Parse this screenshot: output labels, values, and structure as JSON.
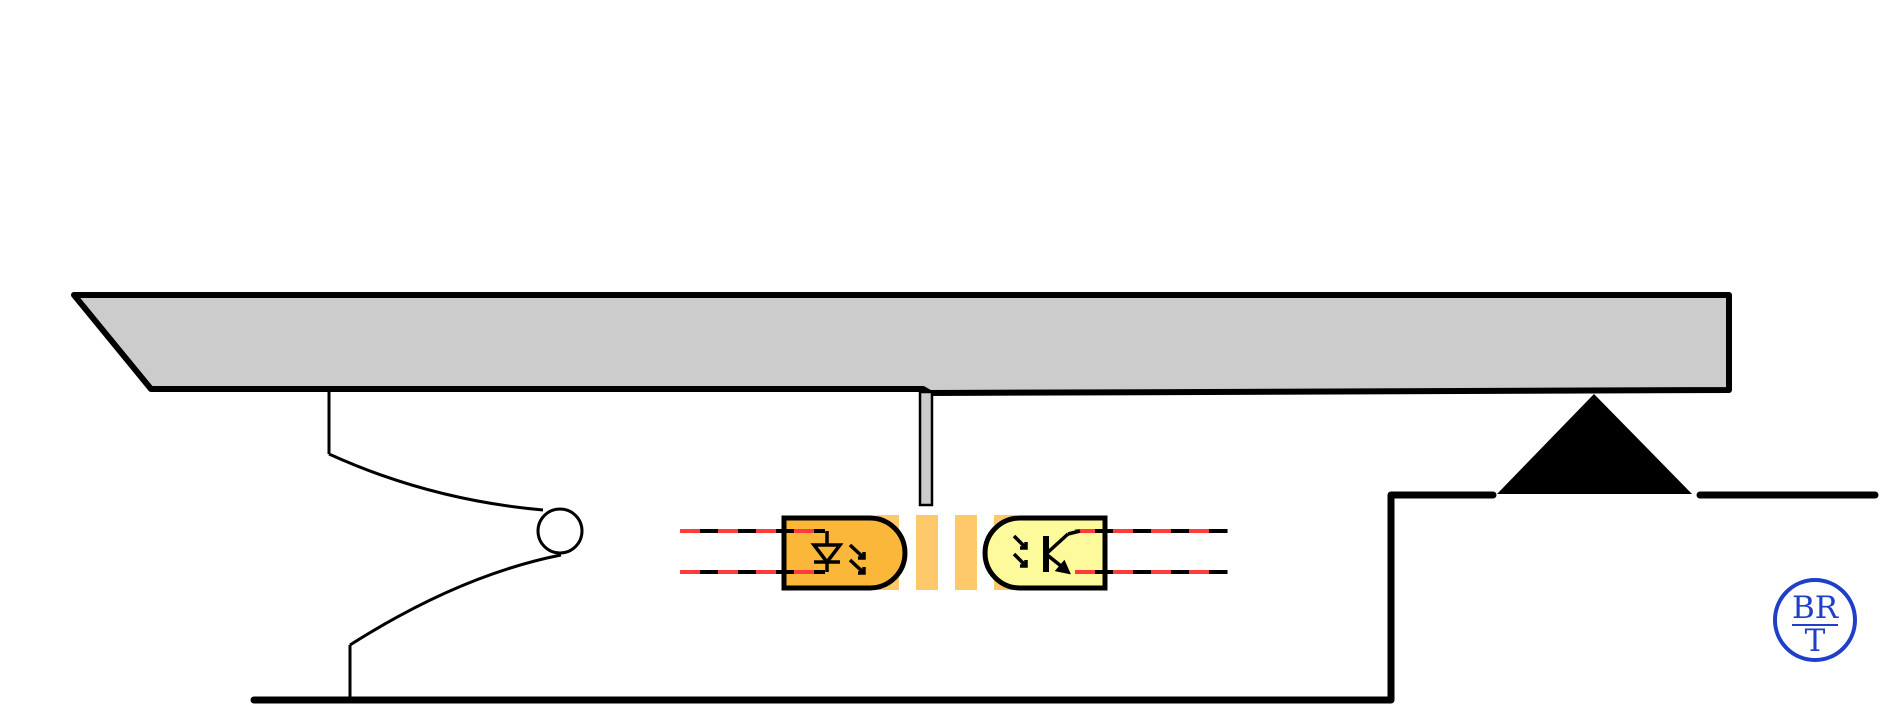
{
  "logo": {
    "top_text": "BR",
    "bottom_text": "T"
  },
  "colors": {
    "outline": "#000000",
    "lever": "#cccccc",
    "emitter": "#fbb739",
    "detector": "#fdfa9b",
    "beam": "#fdc45a",
    "signal_dash": "#ff3b3b",
    "logo": "#1f3fc8"
  },
  "icons": {
    "emitter_symbol": "led-with-emission-arrows",
    "detector_symbol": "phototransistor-with-incoming-arrows",
    "pivot": "triangle-fulcrum",
    "spring": "leaf-spring-with-roller"
  }
}
